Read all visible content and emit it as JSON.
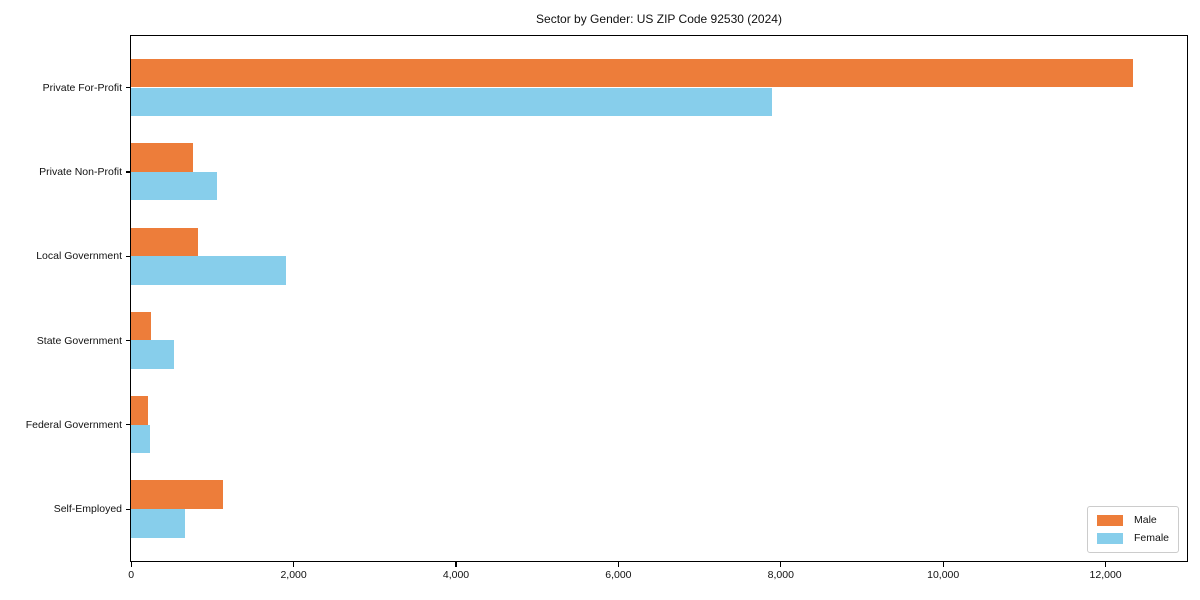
{
  "figure": {
    "background": "#ffffff",
    "axis_color": "#000000",
    "text_color": "#111111",
    "legend_border_color": "#cccccc"
  },
  "chart_data": {
    "type": "bar",
    "orientation": "horizontal",
    "title": "Sector by Gender: US ZIP Code 92530 (2024)",
    "xlabel": "",
    "ylabel": "",
    "categories": [
      "Private For-Profit",
      "Private Non-Profit",
      "Local Government",
      "State Government",
      "Federal Government",
      "Self-Employed"
    ],
    "series": [
      {
        "name": "Male",
        "color": "#ed7d3a",
        "values": [
          12340,
          760,
          830,
          250,
          210,
          1130
        ]
      },
      {
        "name": "Female",
        "color": "#87ceeb",
        "values": [
          7900,
          1060,
          1910,
          530,
          240,
          660
        ]
      }
    ],
    "xlim": [
      0,
      13000
    ],
    "x_ticks": [
      0,
      2000,
      4000,
      6000,
      8000,
      10000,
      12000
    ],
    "x_tick_labels": [
      "0",
      "2,000",
      "4,000",
      "6,000",
      "8,000",
      "10,000",
      "12,000"
    ],
    "grid": false,
    "legend_position": "lower right"
  }
}
